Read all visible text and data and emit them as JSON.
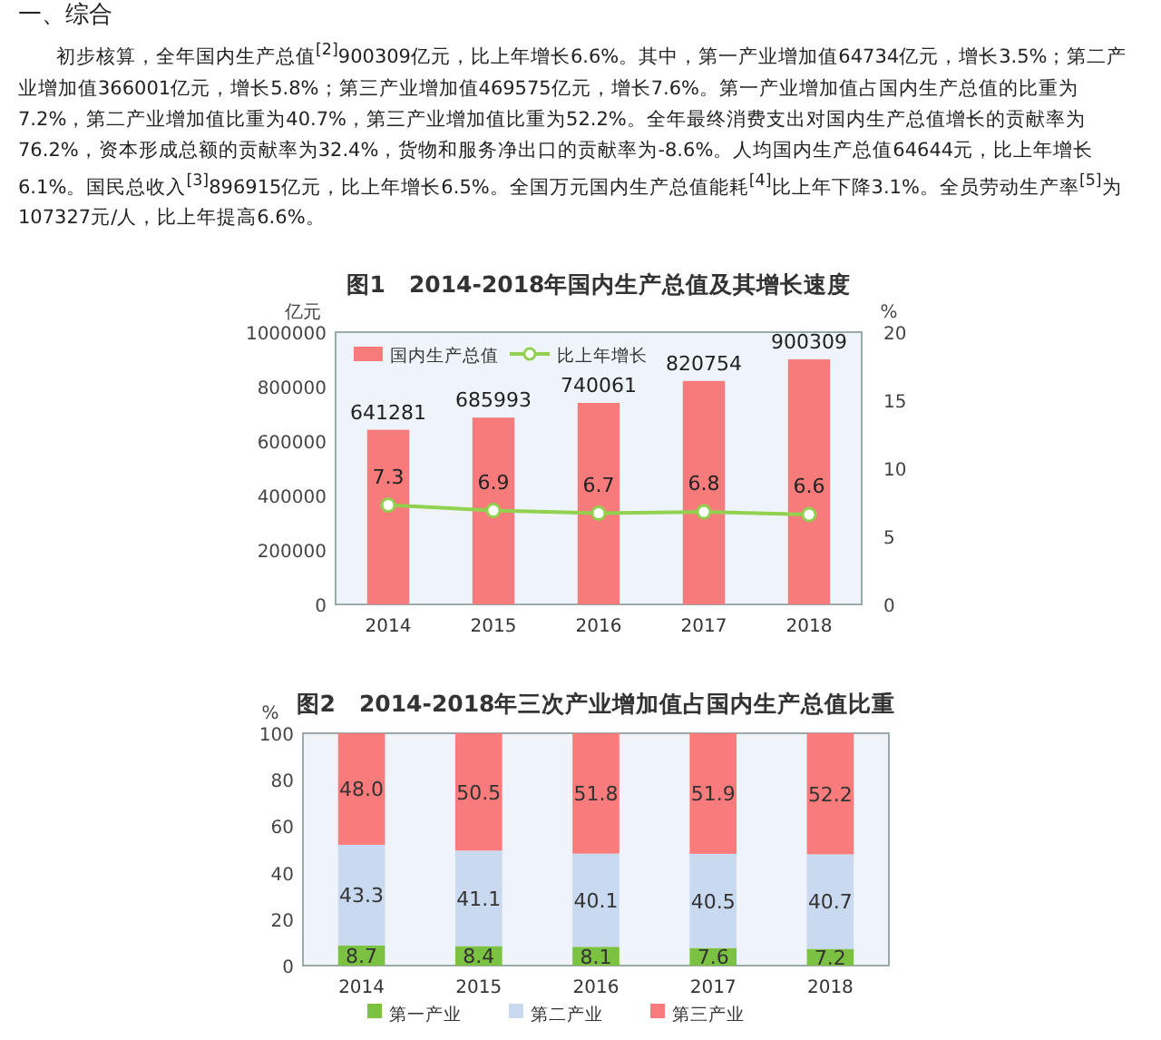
{
  "chart_data": [
    {
      "type": "other",
      "title": "一、综合",
      "annotations": [
        "初步核算，全年国内生产总值$^{[2]}$900309亿元，比上年增长6.6%。其中，第一产业增加值64734亿元，增长3.5%；第二产业增加值366001亿元，增长5.8%；第三产业增加值469575亿元，增长7.6%。第一产业增加值占国内生产总值的比重为7.2%，第二产业增加值比重为40.7%，第三产业增加值比重为52.2%。全年最终消费支出对国内生产总值增长的贡献率为76.2%，资本形成总额的贡献率为32.4%，货物和服务净出口的贡献率为-8.6%。人均国内生产总值64644元，比上年增长6.1%。国民总收入$^{[3]}$896915亿元，比上年增长6.5%。全国万元国内生产总值能耗$^{[4]}$比上年下降3.1%。全员劳动生产率$^{[5]}$为107327元/人，比上年提高6.6%。"
      ]
    },
    {
      "type": "bar",
      "title": "图1　2014-2018年国内生产总值及其增长速度",
      "ylabel": "亿元",
      "y2label": "%",
      "categories": [
        "2014",
        "2015",
        "2016",
        "2017",
        "2018"
      ],
      "series": [
        {
          "name": "国内生产总值",
          "type": "bar",
          "color": "#f77b7b",
          "values": [
            641281,
            685993,
            740061,
            820754,
            900309
          ]
        },
        {
          "name": "比上年增长",
          "type": "line",
          "axis": "y2",
          "color": "#92d050",
          "values": [
            7.3,
            6.9,
            6.7,
            6.8,
            6.6
          ]
        }
      ],
      "ylim": [
        0,
        1000000
      ],
      "yticks": [
        0,
        200000,
        400000,
        600000,
        800000,
        1000000
      ],
      "y2lim": [
        0,
        20
      ],
      "y2ticks": [
        0,
        5,
        10,
        15,
        20
      ],
      "data_labels": true,
      "legend": "top left",
      "marker": "circle",
      "grid": false
    },
    {
      "type": "bar",
      "title": "图2　2014-2018年三次产业增加值占国内生产总值比重",
      "ylabel": "%",
      "categories": [
        "2014",
        "2015",
        "2016",
        "2017",
        "2018"
      ],
      "stacked": true,
      "series": [
        {
          "name": "第一产业",
          "color": "#7cc242",
          "values": [
            8.7,
            8.4,
            8.1,
            7.6,
            7.2
          ],
          "value_labels": [
            "8.7",
            "8.4",
            "8.1",
            "7.6",
            "7.2"
          ]
        },
        {
          "name": "第二产业",
          "color": "#c9d9ef",
          "values": [
            43.3,
            41.1,
            40.1,
            40.5,
            40.7
          ],
          "value_labels": [
            "43.3",
            "41.1",
            "40.1",
            "40.5",
            "40.7"
          ]
        },
        {
          "name": "第三产业",
          "color": "#fa7b7b",
          "values": [
            48.0,
            50.5,
            51.8,
            51.9,
            52.2
          ],
          "value_labels": [
            "48.0",
            "50.5",
            "51.8",
            "51.9",
            "52.2"
          ]
        }
      ],
      "ylim": [
        0,
        100
      ],
      "yticks": [
        0,
        20,
        40,
        60,
        80,
        100
      ],
      "legend": "bottom",
      "grid": false
    }
  ]
}
